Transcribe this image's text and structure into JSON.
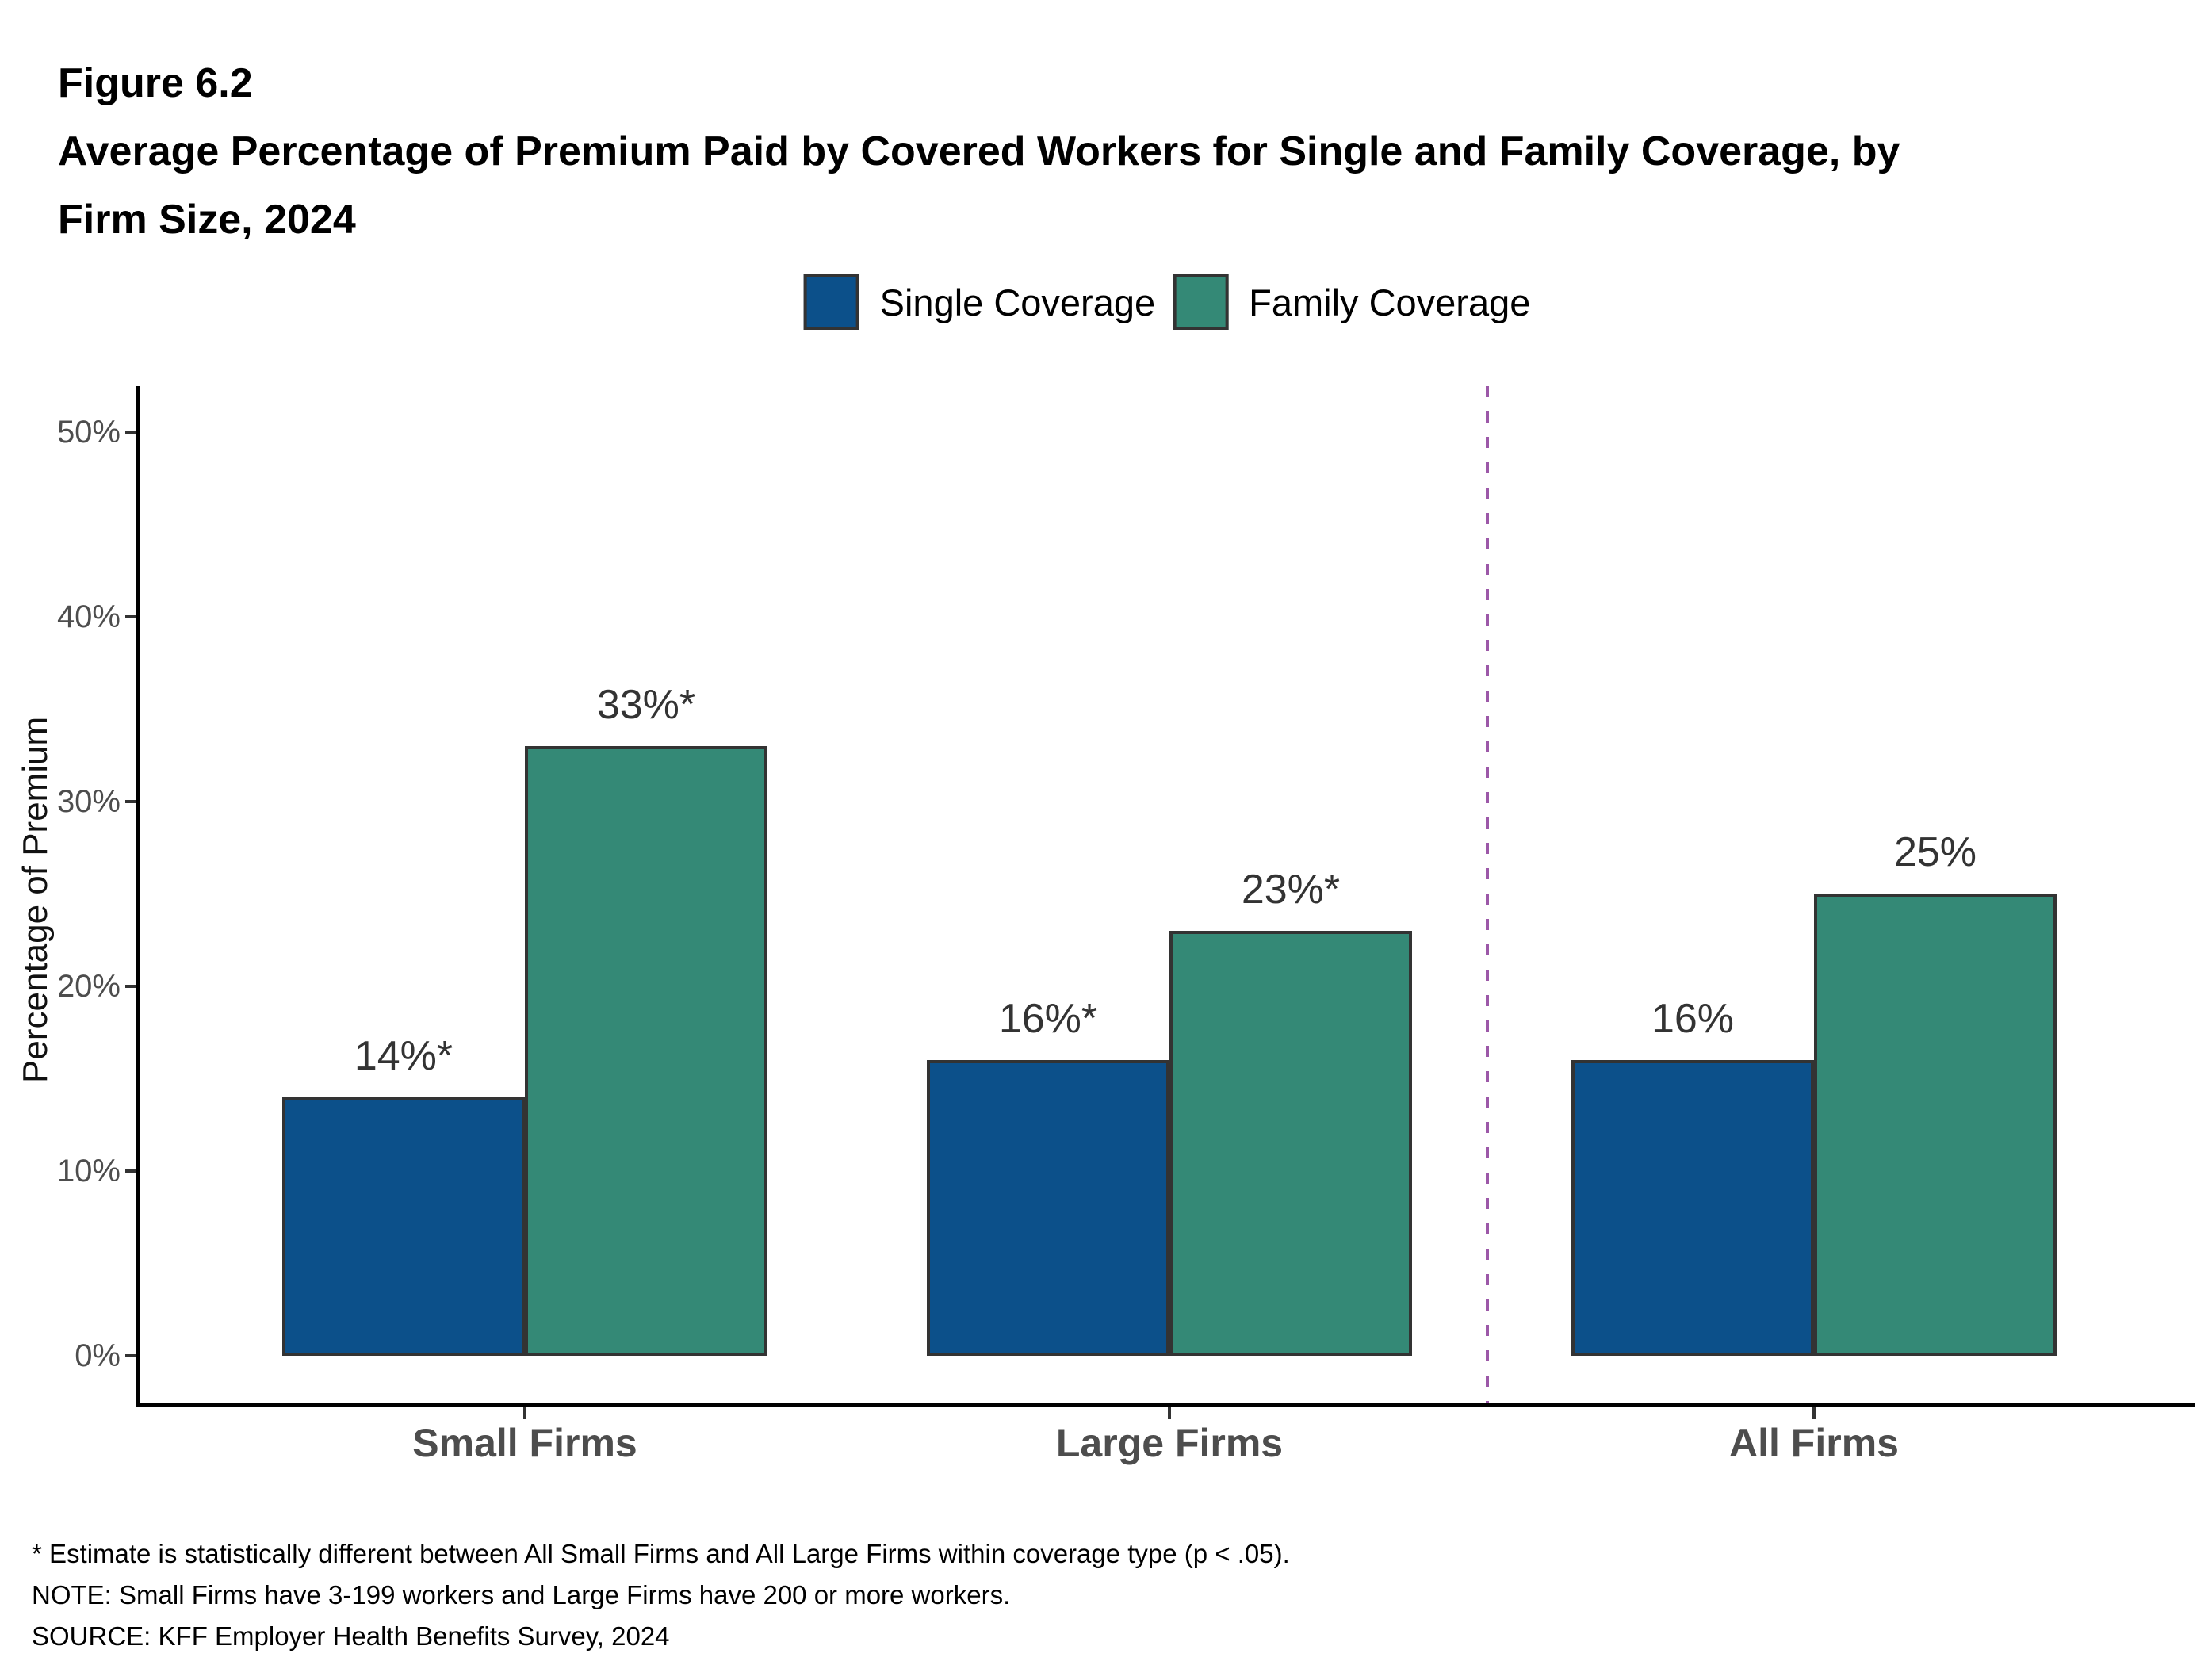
{
  "figure": {
    "label": "Figure 6.2",
    "title_line1": "Average Percentage of Premium Paid by Covered Workers for Single and Family Coverage, by",
    "title_line2": "Firm Size, 2024"
  },
  "legend": [
    {
      "label": "Single Coverage",
      "color": "#0C508A"
    },
    {
      "label": "Family Coverage",
      "color": "#348976"
    }
  ],
  "chart_data": {
    "type": "bar",
    "title": "Average Percentage of Premium Paid by Covered Workers for Single and Family Coverage, by Firm Size, 2024",
    "categories": [
      "Small Firms",
      "Large Firms",
      "All Firms"
    ],
    "series": [
      {
        "name": "Single Coverage",
        "color": "#0C508A",
        "values": [
          14,
          16,
          16
        ],
        "data_labels": [
          "14%*",
          "16%*",
          "16%"
        ]
      },
      {
        "name": "Family Coverage",
        "color": "#348976",
        "values": [
          33,
          23,
          25
        ],
        "data_labels": [
          "33%*",
          "23%*",
          "25%"
        ]
      }
    ],
    "xlabel": "",
    "ylabel": "Percentage of Premium",
    "ylim": [
      0,
      52
    ],
    "ytick_values": [
      0,
      10,
      20,
      30,
      40,
      50
    ],
    "ytick_labels": [
      "0%",
      "10%",
      "20%",
      "30%",
      "40%",
      "50%"
    ],
    "grid": false,
    "legend_position": "top-center",
    "separator": {
      "between": [
        "Large Firms",
        "All Firms"
      ],
      "style": "dashed",
      "color": "#9C58A8"
    }
  },
  "colors": {
    "single_coverage": "#0C508A",
    "family_coverage": "#348976",
    "bar_border": "#333333",
    "axis": "#000000",
    "tick_text": "#4D4D4D",
    "category_text": "#4D4D4D",
    "value_text": "#333333",
    "separator": "#9C58A8",
    "background": "#FFFFFF"
  },
  "footnotes": [
    "* Estimate is statistically different between All Small Firms and All Large Firms within coverage type (p < .05).",
    "NOTE: Small Firms have 3-199 workers and Large Firms have 200 or more workers.",
    "SOURCE: KFF Employer Health Benefits Survey, 2024"
  ]
}
